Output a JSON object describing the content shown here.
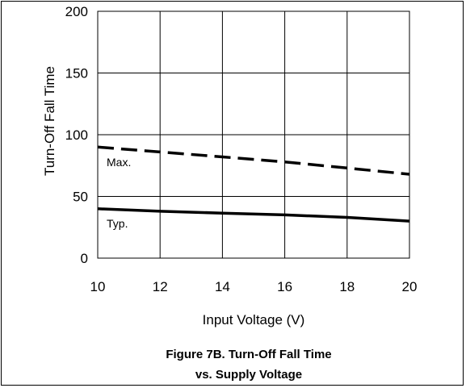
{
  "chart_data": {
    "type": "line",
    "title_line1": "Figure 7B. Turn-Off Fall  Time",
    "title_line2": "vs. Supply Voltage",
    "xlabel": "Input Voltage (V)",
    "ylabel": "Turn-Off Fall Time",
    "xlim": [
      10,
      20
    ],
    "ylim": [
      0,
      200
    ],
    "x_ticks": [
      10,
      12,
      14,
      16,
      18,
      20
    ],
    "y_ticks": [
      0,
      50,
      100,
      150,
      200
    ],
    "grid": true,
    "series": [
      {
        "name": "Max.",
        "style": "dashed",
        "x": [
          10,
          12,
          14,
          16,
          18,
          20
        ],
        "y": [
          90,
          86,
          82,
          78,
          73,
          68
        ]
      },
      {
        "name": "Typ.",
        "style": "solid",
        "x": [
          10,
          12,
          14,
          16,
          18,
          20
        ],
        "y": [
          40,
          38,
          36.5,
          35,
          33,
          30
        ]
      }
    ],
    "colors": {
      "line": "#000000",
      "grid": "#000000",
      "background": "#ffffff"
    }
  }
}
